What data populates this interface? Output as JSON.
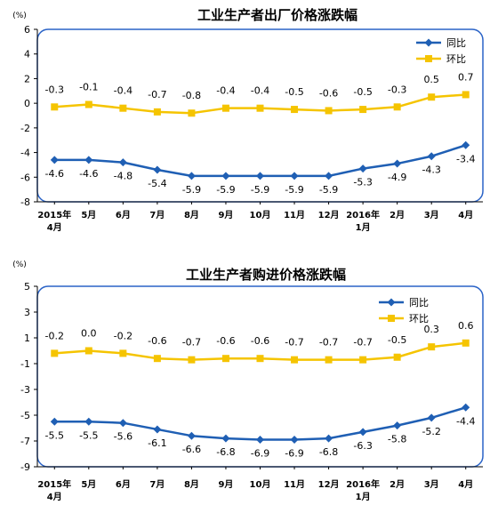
{
  "colors": {
    "yoy": "#1f5fb4",
    "mom": "#f5c400",
    "plot_border": "#2a63c7"
  },
  "chart_data": [
    {
      "type": "line",
      "title": "工业生产者出厂价格涨跌幅",
      "unit_label": "(%)",
      "categories": [
        [
          "2015年",
          "4月"
        ],
        [
          "5月"
        ],
        [
          "6月"
        ],
        [
          "7月"
        ],
        [
          "8月"
        ],
        [
          "9月"
        ],
        [
          "10月"
        ],
        [
          "11月"
        ],
        [
          "12月"
        ],
        [
          "2016年",
          "1月"
        ],
        [
          "2月"
        ],
        [
          "3月"
        ],
        [
          "4月"
        ]
      ],
      "ylim": [
        -8,
        6
      ],
      "yticks": [
        -8,
        -6,
        -4,
        -2,
        0,
        2,
        4,
        6
      ],
      "legend_position": "top-right",
      "series": [
        {
          "name": "同比",
          "color": "#1f5fb4",
          "marker": "diamond",
          "values": [
            -4.6,
            -4.6,
            -4.8,
            -5.4,
            -5.9,
            -5.9,
            -5.9,
            -5.9,
            -5.9,
            -5.3,
            -4.9,
            -4.3,
            -3.4
          ]
        },
        {
          "name": "环比",
          "color": "#f5c400",
          "marker": "square",
          "values": [
            -0.3,
            -0.1,
            -0.4,
            -0.7,
            -0.8,
            -0.4,
            -0.4,
            -0.5,
            -0.6,
            -0.5,
            -0.3,
            0.5,
            0.7
          ]
        }
      ]
    },
    {
      "type": "line",
      "title": "工业生产者购进价格涨跌幅",
      "unit_label": "(%)",
      "categories": [
        [
          "2015年",
          "4月"
        ],
        [
          "5月"
        ],
        [
          "6月"
        ],
        [
          "7月"
        ],
        [
          "8月"
        ],
        [
          "9月"
        ],
        [
          "10月"
        ],
        [
          "11月"
        ],
        [
          "12月"
        ],
        [
          "2016年",
          "1月"
        ],
        [
          "2月"
        ],
        [
          "3月"
        ],
        [
          "4月"
        ]
      ],
      "ylim": [
        -9,
        5
      ],
      "yticks": [
        -9,
        -7,
        -5,
        -3,
        -1,
        1,
        3,
        5
      ],
      "legend_position": "top-right",
      "series": [
        {
          "name": "同比",
          "color": "#1f5fb4",
          "marker": "diamond",
          "values": [
            -5.5,
            -5.5,
            -5.6,
            -6.1,
            -6.6,
            -6.8,
            -6.9,
            -6.9,
            -6.8,
            -6.3,
            -5.8,
            -5.2,
            -4.4
          ]
        },
        {
          "name": "环比",
          "color": "#f5c400",
          "marker": "square",
          "values": [
            -0.2,
            0.0,
            -0.2,
            -0.6,
            -0.7,
            -0.6,
            -0.6,
            -0.7,
            -0.7,
            -0.7,
            -0.5,
            0.3,
            0.6
          ]
        }
      ]
    }
  ]
}
